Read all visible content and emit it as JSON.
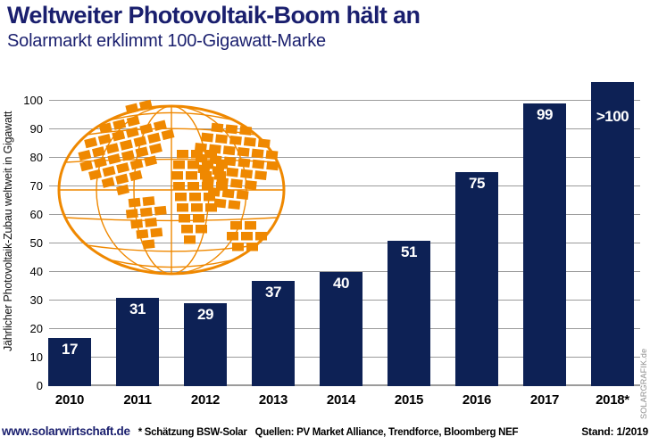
{
  "header": {
    "title": "Weltweiter Photovoltaik-Boom hält an",
    "subtitle": "Solarmarkt erklimmt 100-Gigawatt-Marke"
  },
  "chart_data": {
    "type": "bar",
    "categories": [
      "2010",
      "2011",
      "2012",
      "2013",
      "2014",
      "2015",
      "2016",
      "2017",
      "2018*"
    ],
    "values": [
      17,
      31,
      29,
      37,
      40,
      51,
      75,
      99,
      100
    ],
    "bar_labels": [
      "17",
      "31",
      "29",
      "37",
      "40",
      "51",
      "75",
      "99",
      ">100"
    ],
    "last_bar_overflow": true,
    "title": "Weltweiter Photovoltaik-Boom hält an",
    "xlabel": "",
    "ylabel": "Jährlicher Photovoltaik-Zubau weltweit in Gigawatt",
    "ylim": [
      0,
      100
    ],
    "ytick_step": 10,
    "grid": true,
    "legend": "none"
  },
  "footer": {
    "website": "www.solarwirtschaft.de",
    "footnote": "* Schätzung BSW-Solar",
    "sources": "Quellen: PV Market Alliance, Trendforce, Bloomberg NEF",
    "as_of": "Stand: 1/2019"
  },
  "watermark": "SOLARGRAFIK.de",
  "colors": {
    "bar_navy": "#0d2155",
    "title_navy": "#1a1f6e",
    "globe_orange": "#ef8800",
    "gridline_gray": "#9b9b9b",
    "value_label_white": "#ffffff"
  }
}
